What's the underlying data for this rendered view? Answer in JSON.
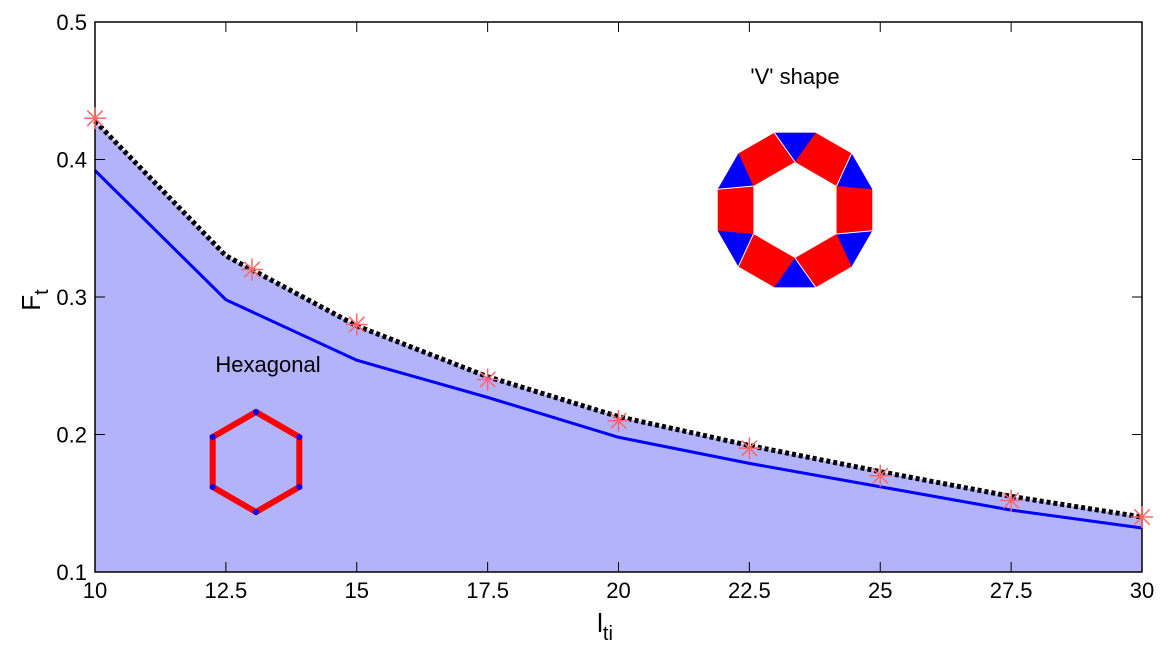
{
  "chart_data": {
    "type": "line",
    "xlabel": {
      "text": "l",
      "subscript": "ti"
    },
    "ylabel": {
      "text": "F",
      "subscript": "t"
    },
    "annotations": [
      "'V' shape",
      "Hexagonal"
    ],
    "xlim": [
      10,
      30
    ],
    "ylim": [
      0.1,
      0.5
    ],
    "xticks": [
      10,
      12.5,
      15,
      17.5,
      20,
      22.5,
      25,
      27.5,
      30
    ],
    "yticks": [
      0.1,
      0.2,
      0.3,
      0.4,
      0.5
    ],
    "series": [
      {
        "style": "dotted",
        "color": "#000000",
        "fill": "#b3b3f9",
        "x": [
          10,
          12.5,
          15,
          17.5,
          20,
          22.5,
          25,
          27.5,
          30
        ],
        "values": [
          0.428,
          0.33,
          0.279,
          0.242,
          0.213,
          0.192,
          0.173,
          0.155,
          0.14
        ]
      },
      {
        "style": "solid",
        "color": "#0000ff",
        "x": [
          10,
          12.5,
          15,
          17.5,
          20,
          22.5,
          25,
          27.5,
          30
        ],
        "values": [
          0.392,
          0.298,
          0.254,
          0.227,
          0.198,
          0.179,
          0.162,
          0.145,
          0.132
        ]
      },
      {
        "style": "marker",
        "color": "#ff6666",
        "x": [
          10,
          13,
          15,
          17.5,
          20,
          22.5,
          25,
          27.5,
          30
        ],
        "values": [
          0.43,
          0.32,
          0.28,
          0.24,
          0.21,
          0.19,
          0.17,
          0.152,
          0.14
        ]
      }
    ]
  }
}
